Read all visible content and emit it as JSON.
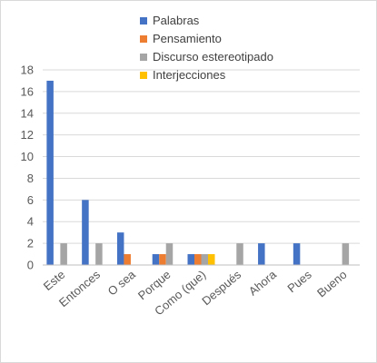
{
  "chart_data": {
    "type": "bar",
    "title": "",
    "xlabel": "",
    "ylabel": "",
    "ylim": [
      0,
      18
    ],
    "ytick_step": 2,
    "grid": true,
    "legend_position": "top",
    "categories": [
      "Este",
      "Entonces",
      "O sea",
      "Porque",
      "Como (que)",
      "Después",
      "Ahora",
      "Pues",
      "Bueno"
    ],
    "series": [
      {
        "name": "Palabras",
        "color": "#4472c4",
        "values": [
          17,
          6,
          3,
          1,
          1,
          0,
          2,
          2,
          0
        ]
      },
      {
        "name": "Pensamiento",
        "color": "#ed7d31",
        "values": [
          0,
          0,
          1,
          1,
          1,
          0,
          0,
          0,
          0
        ]
      },
      {
        "name": "Discurso estereotipado",
        "color": "#a5a5a5",
        "values": [
          2,
          2,
          0,
          2,
          1,
          2,
          0,
          0,
          2
        ]
      },
      {
        "name": "Interjecciones",
        "color": "#ffc000",
        "values": [
          0,
          0,
          0,
          0,
          1,
          0,
          0,
          0,
          0
        ]
      }
    ]
  }
}
